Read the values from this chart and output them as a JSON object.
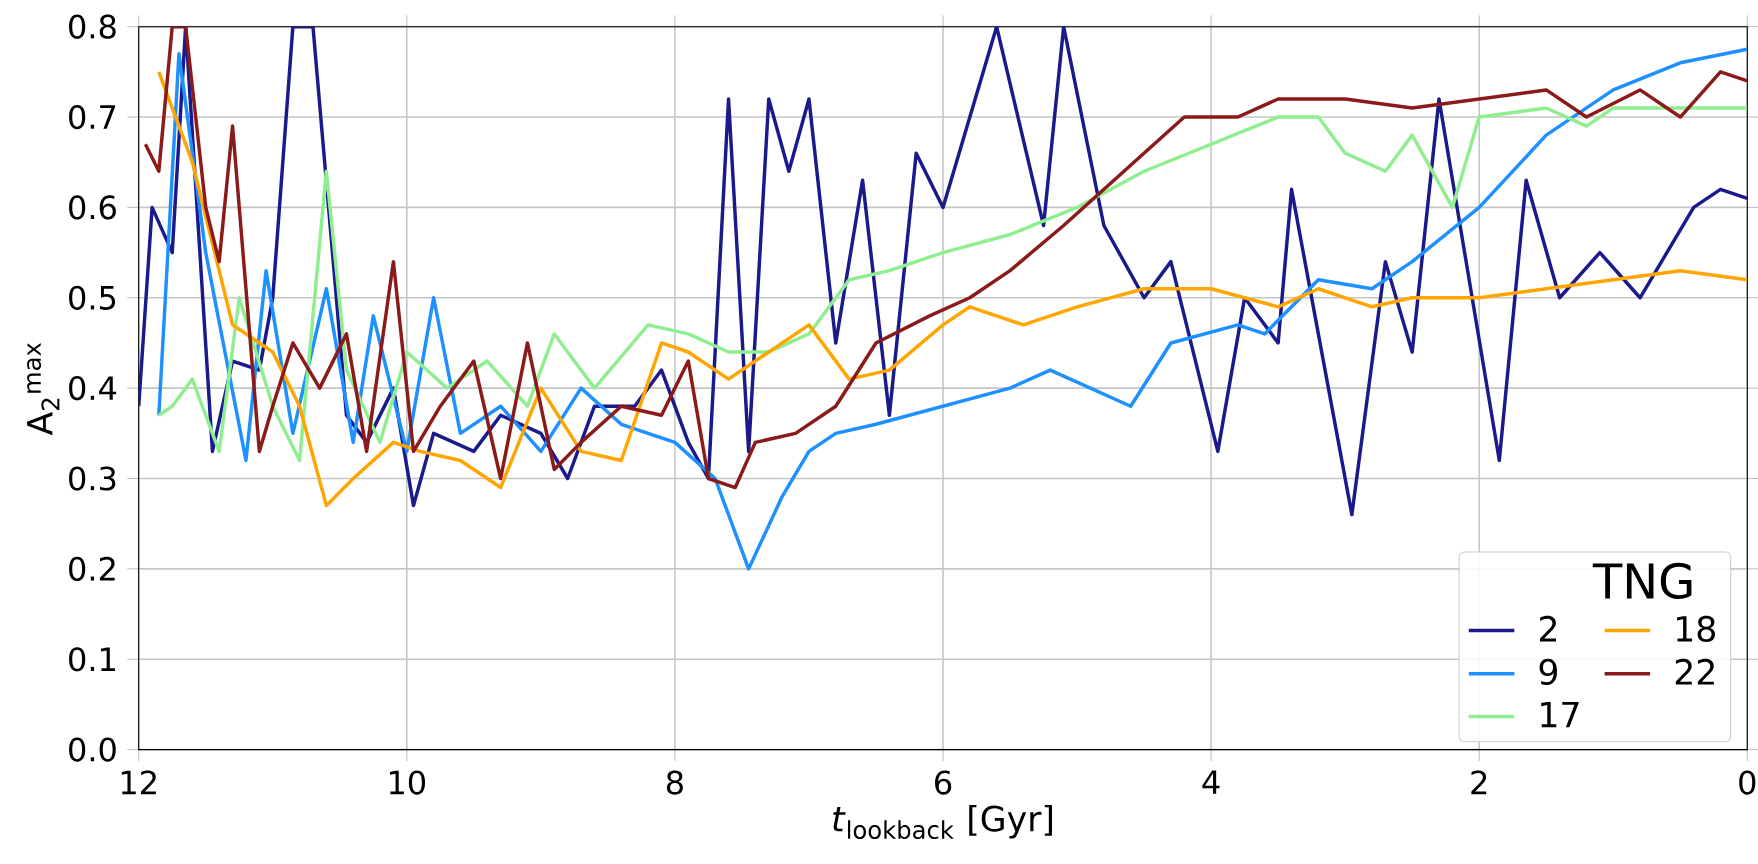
{
  "chart_data": {
    "type": "line",
    "xlabel": "*t*$_{lookback}$ [Gyr]",
    "ylabel": "A$_{2}$$^{max}$",
    "legend_title": "TNG",
    "xlim": [
      12,
      0
    ],
    "ylim": [
      0,
      0.8
    ],
    "xticks": [
      12,
      10,
      8,
      6,
      4,
      2,
      0
    ],
    "yticks": [
      {
        "value": 0,
        "label": "0.0"
      },
      0.1,
      0.2,
      0.3,
      0.4,
      0.5,
      0.6,
      0.7,
      0.8
    ],
    "grid": true,
    "legend": "bottom right",
    "marker": "none",
    "line_style": "solid",
    "series": [
      {
        "name": "2",
        "color": "#1a1a8c",
        "x": [
          12,
          11.9,
          11.75,
          11.65,
          11.45,
          11.3,
          11.1,
          11.0,
          10.85,
          10.7,
          10.45,
          10.3,
          10.1,
          9.95,
          9.8,
          9.5,
          9.3,
          9.0,
          8.8,
          8.6,
          8.3,
          8.1,
          7.9,
          7.75,
          7.6,
          7.45,
          7.3,
          7.15,
          7.0,
          6.8,
          6.6,
          6.4,
          6.2,
          6.0,
          5.6,
          5.25,
          5.1,
          4.8,
          4.5,
          4.3,
          3.95,
          3.75,
          3.5,
          3.4,
          2.95,
          2.7,
          2.5,
          2.3,
          1.85,
          1.65,
          1.4,
          1.1,
          0.8,
          0.4,
          0.2,
          0
        ],
        "values": [
          0.38,
          0.6,
          0.55,
          0.8,
          0.33,
          0.43,
          0.42,
          0.5,
          0.8,
          0.8,
          0.37,
          0.34,
          0.4,
          0.27,
          0.35,
          0.33,
          0.37,
          0.35,
          0.3,
          0.38,
          0.38,
          0.42,
          0.34,
          0.3,
          0.72,
          0.33,
          0.72,
          0.64,
          0.72,
          0.45,
          0.63,
          0.37,
          0.66,
          0.6,
          0.8,
          0.58,
          0.8,
          0.58,
          0.5,
          0.54,
          0.33,
          0.5,
          0.45,
          0.62,
          0.26,
          0.54,
          0.44,
          0.72,
          0.32,
          0.63,
          0.5,
          0.55,
          0.5,
          0.6,
          0.62,
          0.61
        ]
      },
      {
        "name": "9",
        "color": "#1e90ff",
        "x": [
          11.85,
          11.7,
          11.5,
          11.2,
          11.05,
          10.85,
          10.6,
          10.4,
          10.25,
          10.0,
          9.8,
          9.6,
          9.3,
          9.0,
          8.7,
          8.4,
          8.0,
          7.7,
          7.45,
          7.2,
          7.0,
          6.8,
          6.5,
          6.0,
          5.5,
          5.2,
          4.6,
          4.3,
          3.8,
          3.6,
          3.2,
          2.8,
          2.5,
          2.0,
          1.5,
          1.0,
          0.5,
          0
        ],
        "values": [
          0.37,
          0.77,
          0.55,
          0.32,
          0.53,
          0.35,
          0.51,
          0.34,
          0.48,
          0.33,
          0.5,
          0.35,
          0.38,
          0.33,
          0.4,
          0.36,
          0.34,
          0.3,
          0.2,
          0.28,
          0.33,
          0.35,
          0.36,
          0.38,
          0.4,
          0.42,
          0.38,
          0.45,
          0.47,
          0.46,
          0.52,
          0.51,
          0.54,
          0.6,
          0.68,
          0.73,
          0.76,
          0.775
        ]
      },
      {
        "name": "17",
        "color": "#90ee90",
        "x": [
          11.85,
          11.75,
          11.6,
          11.4,
          11.25,
          11.0,
          10.8,
          10.6,
          10.45,
          10.2,
          10.0,
          9.7,
          9.4,
          9.1,
          8.9,
          8.6,
          8.2,
          7.9,
          7.6,
          7.3,
          7.0,
          6.7,
          6.4,
          6.0,
          5.5,
          5.0,
          4.5,
          4.0,
          3.5,
          3.2,
          3.0,
          2.7,
          2.5,
          2.2,
          2.0,
          1.5,
          1.2,
          1.0,
          0.6,
          0
        ],
        "values": [
          0.37,
          0.38,
          0.41,
          0.33,
          0.5,
          0.38,
          0.32,
          0.64,
          0.42,
          0.34,
          0.44,
          0.4,
          0.43,
          0.38,
          0.46,
          0.4,
          0.47,
          0.46,
          0.44,
          0.44,
          0.46,
          0.52,
          0.53,
          0.55,
          0.57,
          0.6,
          0.64,
          0.67,
          0.7,
          0.7,
          0.66,
          0.64,
          0.68,
          0.6,
          0.7,
          0.71,
          0.69,
          0.71,
          0.71,
          0.71
        ]
      },
      {
        "name": "18",
        "color": "#ffa500",
        "x": [
          11.85,
          11.6,
          11.3,
          11.0,
          10.8,
          10.6,
          10.4,
          10.1,
          9.9,
          9.6,
          9.3,
          9.0,
          8.7,
          8.4,
          8.1,
          7.9,
          7.6,
          7.3,
          7.0,
          6.7,
          6.4,
          6.0,
          5.8,
          5.4,
          5.0,
          4.5,
          4.0,
          3.5,
          3.2,
          2.8,
          2.5,
          2.0,
          1.5,
          1.0,
          0.5,
          0
        ],
        "values": [
          0.75,
          0.65,
          0.47,
          0.44,
          0.38,
          0.27,
          0.3,
          0.34,
          0.33,
          0.32,
          0.29,
          0.4,
          0.33,
          0.32,
          0.45,
          0.44,
          0.41,
          0.44,
          0.47,
          0.41,
          0.42,
          0.47,
          0.49,
          0.47,
          0.49,
          0.51,
          0.51,
          0.49,
          0.51,
          0.49,
          0.5,
          0.5,
          0.51,
          0.52,
          0.53,
          0.52
        ]
      },
      {
        "name": "22",
        "color": "#8b1a1a",
        "x": [
          11.95,
          11.85,
          11.75,
          11.65,
          11.5,
          11.4,
          11.3,
          11.1,
          11.0,
          10.85,
          10.65,
          10.45,
          10.3,
          10.1,
          9.95,
          9.75,
          9.5,
          9.3,
          9.1,
          8.9,
          8.7,
          8.4,
          8.1,
          7.9,
          7.75,
          7.55,
          7.4,
          7.1,
          6.8,
          6.5,
          6.1,
          5.8,
          5.5,
          5.1,
          4.8,
          4.5,
          4.2,
          3.8,
          3.5,
          3.0,
          2.5,
          2.0,
          1.5,
          1.2,
          0.8,
          0.5,
          0.2,
          0
        ],
        "values": [
          0.67,
          0.64,
          0.8,
          0.8,
          0.6,
          0.54,
          0.69,
          0.33,
          0.38,
          0.45,
          0.4,
          0.46,
          0.33,
          0.54,
          0.33,
          0.38,
          0.43,
          0.3,
          0.45,
          0.31,
          0.34,
          0.38,
          0.37,
          0.43,
          0.3,
          0.29,
          0.34,
          0.35,
          0.38,
          0.45,
          0.48,
          0.5,
          0.53,
          0.58,
          0.62,
          0.66,
          0.7,
          0.7,
          0.72,
          0.72,
          0.71,
          0.72,
          0.73,
          0.7,
          0.73,
          0.7,
          0.75,
          0.74
        ]
      }
    ]
  }
}
